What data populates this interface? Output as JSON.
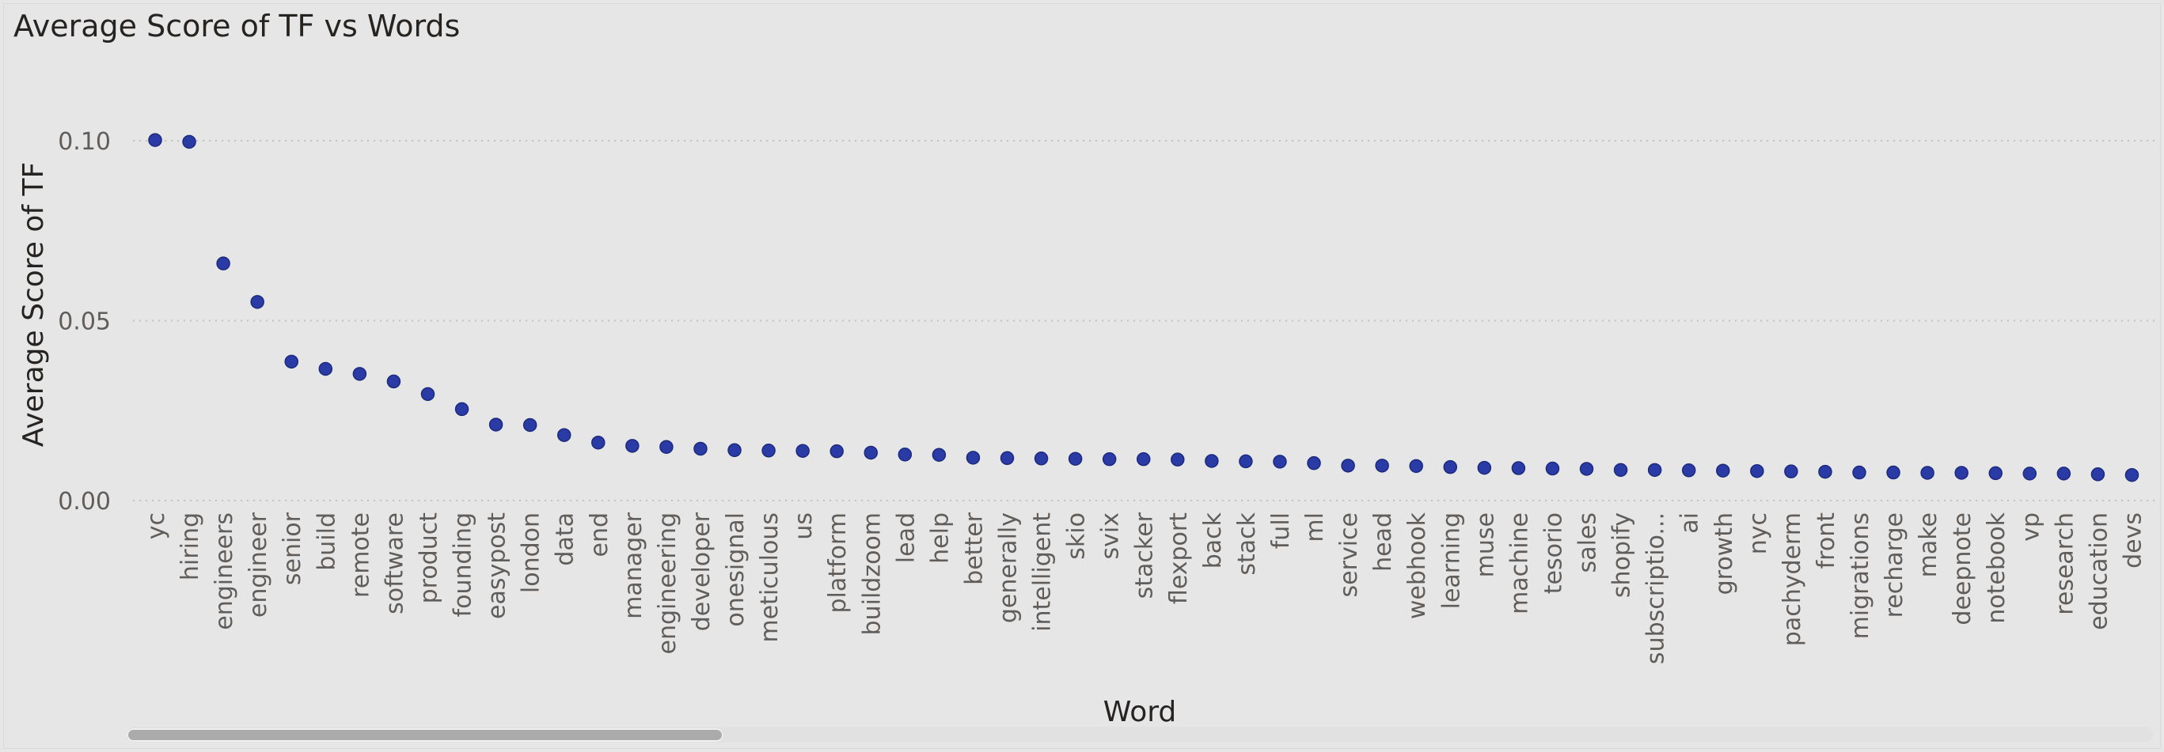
{
  "chart_data": {
    "type": "scatter",
    "title": "Average Score of TF vs Words",
    "xlabel": "Word",
    "ylabel": "Average Score of TF",
    "ylim": [
      0,
      0.1
    ],
    "yticks": [
      "0.00",
      "0.05",
      "0.10"
    ],
    "ytick_values": [
      0,
      0.05,
      0.1
    ],
    "gridlines": "dotted",
    "marker_color": "#2a3ba5",
    "categories": [
      "yc",
      "hiring",
      "engineers",
      "engineer",
      "senior",
      "build",
      "remote",
      "software",
      "product",
      "founding",
      "easypost",
      "london",
      "data",
      "end",
      "manager",
      "engineering",
      "developer",
      "onesignal",
      "meticulous",
      "us",
      "platform",
      "buildzoom",
      "lead",
      "help",
      "better",
      "generally",
      "intelligent",
      "skio",
      "svix",
      "stacker",
      "flexport",
      "back",
      "stack",
      "full",
      "ml",
      "service",
      "head",
      "webhook",
      "learning",
      "muse",
      "machine",
      "tesorio",
      "sales",
      "shopify",
      "subscriptio...",
      "ai",
      "growth",
      "nyc",
      "pachyderm",
      "front",
      "migrations",
      "recharge",
      "make",
      "deepnote",
      "notebook",
      "vp",
      "research",
      "education",
      "devs"
    ],
    "values": [
      0.1002,
      0.0997,
      0.0659,
      0.0552,
      0.0386,
      0.0366,
      0.0352,
      0.0331,
      0.0296,
      0.0254,
      0.0211,
      0.021,
      0.0182,
      0.0161,
      0.0152,
      0.0149,
      0.0144,
      0.014,
      0.0139,
      0.0138,
      0.0137,
      0.0133,
      0.0128,
      0.0127,
      0.0119,
      0.0118,
      0.0117,
      0.0116,
      0.0115,
      0.0115,
      0.0114,
      0.011,
      0.0109,
      0.0108,
      0.0104,
      0.0097,
      0.0097,
      0.0096,
      0.0093,
      0.0091,
      0.009,
      0.0089,
      0.0088,
      0.0085,
      0.0085,
      0.0084,
      0.0083,
      0.0082,
      0.0081,
      0.008,
      0.0078,
      0.0078,
      0.0077,
      0.0077,
      0.0076,
      0.0075,
      0.0075,
      0.0073,
      0.0071
    ]
  }
}
